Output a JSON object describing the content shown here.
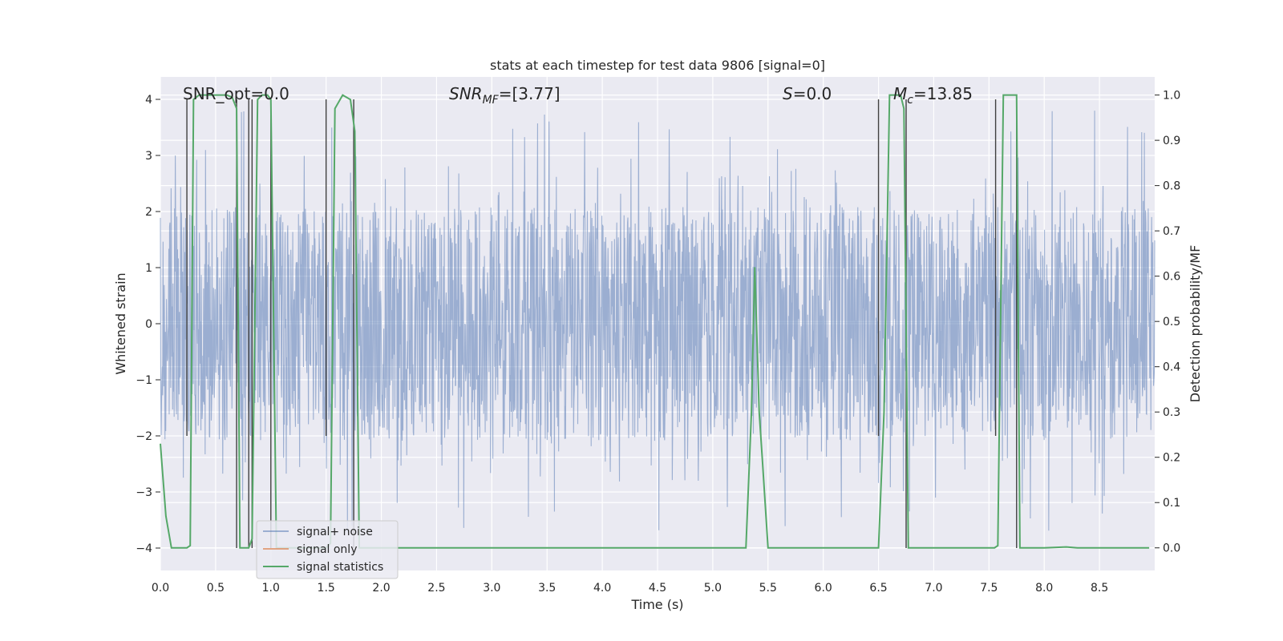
{
  "chart_data": {
    "type": "line",
    "title": "stats at each timestep for test data 9806 [signal=0]",
    "xlabel": "Time (s)",
    "ylabel_left": "Whitened strain",
    "ylabel_right": "Detection probability/MF",
    "xlim": [
      0.0,
      9.0
    ],
    "ylim_left": [
      -4.4,
      4.4
    ],
    "ylim_right": [
      -0.05,
      1.04
    ],
    "xticks": [
      "0.0",
      "0.5",
      "1.0",
      "1.5",
      "2.0",
      "2.5",
      "3.0",
      "3.5",
      "4.0",
      "4.5",
      "5.0",
      "5.5",
      "6.0",
      "6.5",
      "7.0",
      "7.5",
      "8.0",
      "8.5"
    ],
    "yticks_left": [
      "−4",
      "−3",
      "−2",
      "−1",
      "0",
      "1",
      "2",
      "3",
      "4"
    ],
    "yticks_right": [
      "0.0",
      "0.1",
      "0.2",
      "0.3",
      "0.4",
      "0.5",
      "0.6",
      "0.7",
      "0.8",
      "0.9",
      "1.0"
    ],
    "grid": true,
    "legend_position": "bottom-left",
    "annotations": {
      "snr_opt": "SNR_opt=0.0",
      "snr_mf_main": "SNR",
      "snr_mf_sub": "MF",
      "snr_mf_value": "=[3.77]",
      "s_main": "S",
      "s_value": "=0.0",
      "mc_main": "M",
      "mc_sub": "c",
      "mc_value": "=13.85"
    },
    "series": [
      {
        "name": "signal+ noise",
        "color": "#4c72b0",
        "description": "whitened strain noise, roughly within −2..2 with spikes to ±4",
        "envelope": {
          "x": [
            0.0,
            9.0
          ],
          "core": [
            -1.6,
            1.6
          ],
          "peaks": [
            -4.0,
            4.0
          ]
        }
      },
      {
        "name": "signal only",
        "color": "#dd8452",
        "values": []
      },
      {
        "name": "signal statistics",
        "color": "#55a868",
        "x": [
          0.0,
          0.05,
          0.1,
          0.15,
          0.2,
          0.24,
          0.27,
          0.3,
          0.35,
          0.5,
          0.6,
          0.65,
          0.69,
          0.72,
          0.76,
          0.8,
          0.83,
          0.88,
          0.92,
          0.97,
          1.0,
          1.05,
          1.5,
          1.54,
          1.58,
          1.65,
          1.72,
          1.76,
          1.8,
          1.85,
          5.3,
          5.35,
          5.38,
          5.42,
          5.45,
          5.5,
          6.5,
          6.55,
          6.6,
          6.7,
          6.73,
          6.77,
          6.8,
          6.85,
          7.55,
          7.58,
          7.63,
          7.75,
          7.78,
          7.85,
          8.0,
          8.2,
          8.3,
          8.95
        ],
        "y": [
          0.23,
          0.07,
          0.0,
          0.0,
          0.0,
          0.0,
          0.005,
          0.99,
          1.0,
          1.0,
          1.0,
          0.995,
          0.97,
          0.0,
          0.0,
          0.0,
          0.02,
          0.99,
          1.0,
          1.0,
          0.99,
          0.0,
          0.0,
          0.01,
          0.97,
          1.0,
          0.99,
          0.92,
          0.0,
          0.0,
          0.0,
          0.3,
          0.62,
          0.3,
          0.19,
          0.0,
          0.0,
          0.3,
          1.0,
          1.0,
          0.97,
          0.0,
          0.0,
          0.0,
          0.0,
          0.005,
          1.0,
          1.0,
          0.0,
          0.0,
          0.0,
          0.002,
          0.0,
          0.0
        ]
      }
    ],
    "vertical_markers": {
      "color": "#404040",
      "x": [
        0.24,
        0.69,
        0.8,
        0.83,
        1.0,
        1.5,
        1.75,
        6.5,
        6.75,
        7.56,
        7.75
      ],
      "y_top": [
        4.0,
        4.0,
        4.0,
        4.0,
        4.0,
        4.0,
        4.0,
        4.0,
        4.0,
        4.0,
        4.0
      ],
      "y_bottom": [
        -2.0,
        -4.0,
        -4.0,
        -4.0,
        -4.0,
        -2.0,
        -4.0,
        -2.0,
        -4.0,
        -2.0,
        -4.0
      ]
    }
  }
}
